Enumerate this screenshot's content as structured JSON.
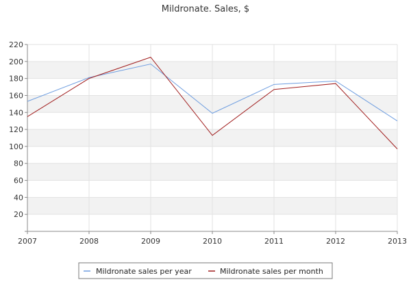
{
  "chart_data": {
    "type": "line",
    "title": "Mildronate. Sales, $",
    "xlabel": "",
    "ylabel": "",
    "x": [
      "2007",
      "2008",
      "2009",
      "2010",
      "2011",
      "2012",
      "2013"
    ],
    "y_ticks": [
      "20",
      "40",
      "60",
      "80",
      "100",
      "120",
      "140",
      "160",
      "180",
      "200",
      "220"
    ],
    "ylim": [
      0,
      220
    ],
    "grid": true,
    "legend_position": "bottom",
    "series": [
      {
        "name": "Mildronate sales per year",
        "color": "#6f9ee0",
        "values": [
          153,
          181,
          197,
          139,
          173,
          177,
          130
        ]
      },
      {
        "name": "Mildronate sales per month",
        "color": "#a01c1c",
        "values": [
          135,
          180,
          205,
          113,
          167,
          174,
          97
        ]
      }
    ]
  }
}
